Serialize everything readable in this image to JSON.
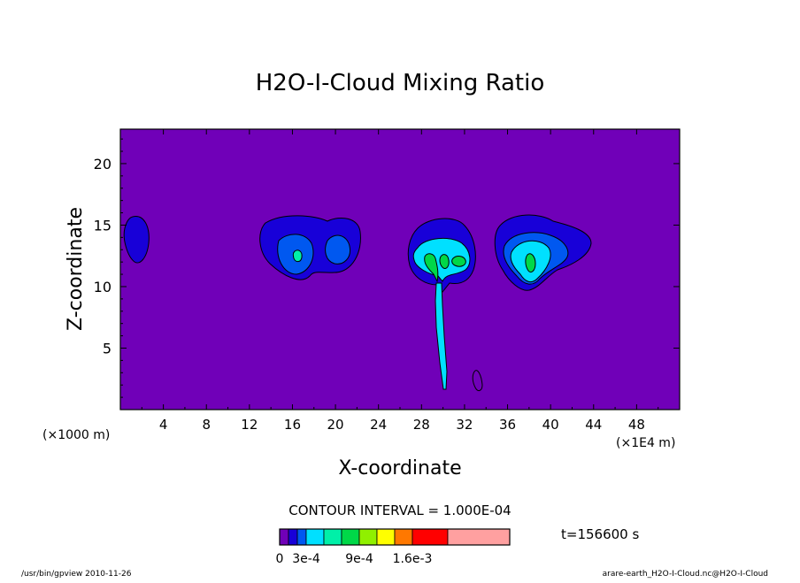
{
  "chart_data": {
    "type": "heatmap",
    "title": "H2O-I-Cloud Mixing Ratio",
    "xlabel": "X-coordinate",
    "ylabel": "Z-coordinate",
    "x_unit_left": "(×1000 m)",
    "x_unit_right": "(×1E4 m)",
    "xlim": [
      0,
      52
    ],
    "ylim": [
      0,
      22.8
    ],
    "x_ticks": [
      4,
      8,
      12,
      16,
      20,
      24,
      28,
      32,
      36,
      40,
      44,
      48
    ],
    "y_ticks": [
      5,
      10,
      15,
      20
    ],
    "background_color": "#7000b8",
    "contour_interval_label": "CONTOUR INTERVAL = 1.000E-04",
    "time_label": "t=156600 s",
    "colorbar": {
      "colors": [
        "#7000b8",
        "#1800d8",
        "#0058f0",
        "#00e0ff",
        "#00f0a8",
        "#00d848",
        "#90f000",
        "#ffff00",
        "#ff7800",
        "#ff0000",
        "#ffa0a0"
      ],
      "tick_labels": [
        "0",
        "3e-4",
        "9e-4",
        "1.6e-3"
      ]
    },
    "cloud_cells": [
      {
        "x": 1.5,
        "z": 14.0,
        "peak": 0.0002
      },
      {
        "x": 16.5,
        "z": 12.9,
        "peak": 0.0003
      },
      {
        "x": 19.7,
        "z": 13.2,
        "peak": 0.0002
      },
      {
        "x": 29.3,
        "z": 12.3,
        "peak": 0.0005
      },
      {
        "x": 37.6,
        "z": 12.6,
        "peak": 0.0004
      }
    ],
    "footer_left": "/usr/bin/gpview  2010-11-26",
    "footer_right": "arare-earth_H2O-I-Cloud.nc@H2O-I-Cloud"
  }
}
